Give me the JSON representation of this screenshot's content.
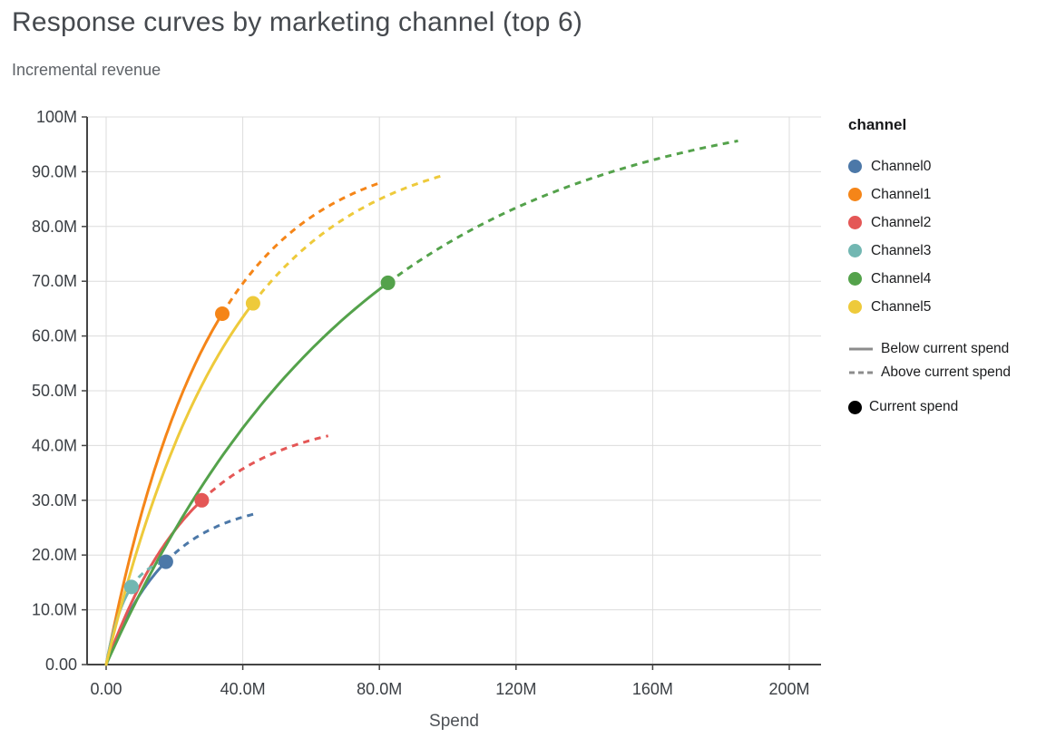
{
  "chart_data": {
    "type": "line",
    "title": "Response curves by marketing channel (top 6)",
    "subtitle": "Incremental revenue",
    "grid": true,
    "x_axis": {
      "label": "Spend",
      "unit": "millions",
      "range_m": [
        0,
        200
      ],
      "ticks": [
        {
          "v": 0,
          "t": "0.00"
        },
        {
          "v": 40,
          "t": "40.0M"
        },
        {
          "v": 80,
          "t": "80.0M"
        },
        {
          "v": 120,
          "t": "120M"
        },
        {
          "v": 160,
          "t": "160M"
        },
        {
          "v": 200,
          "t": "200M"
        }
      ]
    },
    "y_axis": {
      "label": "Incremental revenue",
      "unit": "millions",
      "range_m": [
        0,
        100
      ],
      "ticks": [
        {
          "v": 0,
          "t": "0.00"
        },
        {
          "v": 10,
          "t": "10.0M"
        },
        {
          "v": 20,
          "t": "20.0M"
        },
        {
          "v": 30,
          "t": "30.0M"
        },
        {
          "v": 40,
          "t": "40.0M"
        },
        {
          "v": 50,
          "t": "50.0M"
        },
        {
          "v": 60,
          "t": "60.0M"
        },
        {
          "v": 70,
          "t": "70.0M"
        },
        {
          "v": 80,
          "t": "80.0M"
        },
        {
          "v": 90,
          "t": "90.0M"
        },
        {
          "v": 100,
          "t": "100M"
        }
      ]
    },
    "legend": {
      "position": "right",
      "title": "channel",
      "line_styles": [
        {
          "style": "solid",
          "label": "Below current spend",
          "color": "#8c8c8c"
        },
        {
          "style": "dashed",
          "label": "Above current spend",
          "color": "#8c8c8c"
        }
      ],
      "point": {
        "label": "Current spend",
        "color": "#000000"
      }
    },
    "series": [
      {
        "name": "Channel0",
        "color": "#4c78a8",
        "curve": {
          "model": "ymax*(1-exp(-x/rate))",
          "ymax_m": 30.2,
          "rate_m": 18
        },
        "current_spend": {
          "x_m": 17.5,
          "y_m": 18.8
        },
        "max_spend_m": 44,
        "end": {
          "x_m": 44,
          "y_m": 27.6
        }
      },
      {
        "name": "Channel1",
        "color": "#f58518",
        "curve": {
          "model": "ymax*(1-exp(-x/rate))",
          "ymax_m": 94.5,
          "rate_m": 30
        },
        "current_spend": {
          "x_m": 34,
          "y_m": 64.1
        },
        "max_spend_m": 80,
        "end": {
          "x_m": 80,
          "y_m": 87.9
        }
      },
      {
        "name": "Channel2",
        "color": "#e45756",
        "curve": {
          "model": "ymax*(1-exp(-x/rate))",
          "ymax_m": 45.5,
          "rate_m": 26
        },
        "current_spend": {
          "x_m": 28,
          "y_m": 29.9
        },
        "max_spend_m": 65,
        "end": {
          "x_m": 65,
          "y_m": 41.8
        }
      },
      {
        "name": "Channel3",
        "color": "#72b7b2",
        "curve": {
          "model": "ymax*(1-exp(-x/rate))",
          "ymax_m": 20,
          "rate_m": 6
        },
        "current_spend": {
          "x_m": 7.4,
          "y_m": 14.2
        },
        "max_spend_m": 18,
        "end": {
          "x_m": 18,
          "y_m": 19.0
        }
      },
      {
        "name": "Channel4",
        "color": "#54a24b",
        "curve": {
          "model": "ymax*(1-exp(-x/rate))",
          "ymax_m": 104.5,
          "rate_m": 75
        },
        "current_spend": {
          "x_m": 82.5,
          "y_m": 69.7
        },
        "max_spend_m": 185,
        "end": {
          "x_m": 185,
          "y_m": 95.6
        }
      },
      {
        "name": "Channel5",
        "color": "#eeca3b",
        "curve": {
          "model": "ymax*(1-exp(-x/rate))",
          "ymax_m": 96,
          "rate_m": 37
        },
        "current_spend": {
          "x_m": 43,
          "y_m": 66.0
        },
        "max_spend_m": 98,
        "end": {
          "x_m": 98,
          "y_m": 89.2
        }
      }
    ]
  }
}
